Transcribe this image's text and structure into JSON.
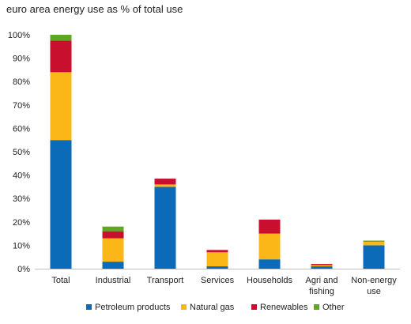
{
  "chart_data": {
    "type": "bar",
    "stacked": true,
    "title": "euro area energy use as % of total  use",
    "xlabel": "",
    "ylabel": "",
    "ylim": [
      0,
      100
    ],
    "y_ticks": [
      "0%",
      "10%",
      "20%",
      "30%",
      "40%",
      "50%",
      "60%",
      "70%",
      "80%",
      "90%",
      "100%"
    ],
    "grid": false,
    "legend_position": "bottom",
    "categories": [
      [
        "Total"
      ],
      [
        "Industrial"
      ],
      [
        "Transport"
      ],
      [
        "Services"
      ],
      [
        "Households"
      ],
      [
        "Agri and",
        "fishing"
      ],
      [
        "Non-energy",
        "use"
      ]
    ],
    "series": [
      {
        "name": "Petroleum products",
        "color": "#0b6bb8",
        "values": [
          55,
          3,
          35,
          1,
          4,
          1,
          10
        ]
      },
      {
        "name": "Natural gas",
        "color": "#fbb718",
        "values": [
          29,
          10,
          1,
          6,
          11,
          0.5,
          1.5
        ]
      },
      {
        "name": "Renewables",
        "color": "#c8102e",
        "values": [
          13.5,
          3,
          2.5,
          1,
          6,
          0.5,
          0
        ]
      },
      {
        "name": "Other",
        "color": "#5ea81f",
        "values": [
          2.5,
          2,
          0,
          0,
          0,
          0,
          0.5
        ]
      }
    ]
  }
}
